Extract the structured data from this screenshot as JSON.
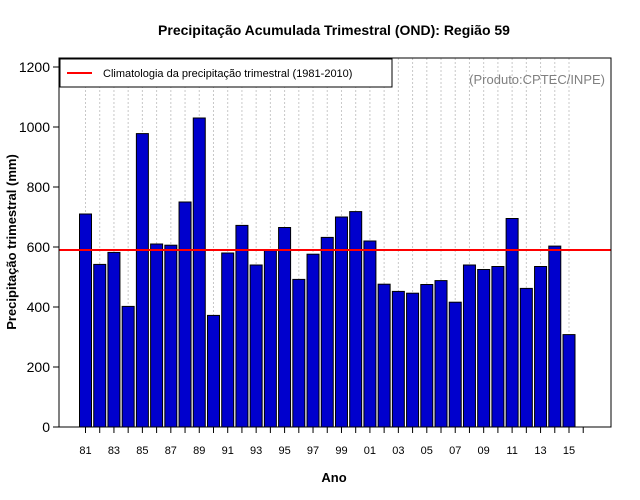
{
  "chart_data": {
    "type": "bar",
    "title": "Precipitação Acumulada Trimestral (OND): Região 59",
    "xlabel": "Ano",
    "ylabel": "Precipitação trimestral (mm)",
    "ylim": [
      0,
      1230
    ],
    "yticks": [
      0,
      200,
      400,
      600,
      800,
      1000,
      1200
    ],
    "x_labels": [
      "81",
      "83",
      "85",
      "87",
      "89",
      "91",
      "93",
      "95",
      "97",
      "99",
      "01",
      "03",
      "05",
      "07",
      "09",
      "11",
      "13",
      "15"
    ],
    "years": [
      "1981",
      "1982",
      "1983",
      "1984",
      "1985",
      "1986",
      "1987",
      "1988",
      "1989",
      "1990",
      "1991",
      "1992",
      "1993",
      "1994",
      "1995",
      "1996",
      "1997",
      "1998",
      "1999",
      "2000",
      "2001",
      "2002",
      "2003",
      "2004",
      "2005",
      "2006",
      "2007",
      "2008",
      "2009",
      "2010",
      "2011",
      "2012",
      "2013",
      "2014",
      "2015"
    ],
    "values": [
      710,
      542,
      582,
      402,
      978,
      610,
      606,
      750,
      1030,
      372,
      580,
      672,
      540,
      588,
      665,
      492,
      576,
      632,
      700,
      718,
      620,
      476,
      452,
      446,
      475,
      488,
      416,
      540,
      525,
      535,
      695,
      462,
      535,
      603,
      308
    ],
    "bar_color": "#0000CD",
    "climatology": {
      "value": 590,
      "color": "#FF0000",
      "label": "Climatologia da precipitação trimestral (1981-2010)"
    },
    "source_note": "(Produto:CPTEC/INPE)",
    "grid": "vertical-dotted",
    "legend_position": "top-left"
  }
}
